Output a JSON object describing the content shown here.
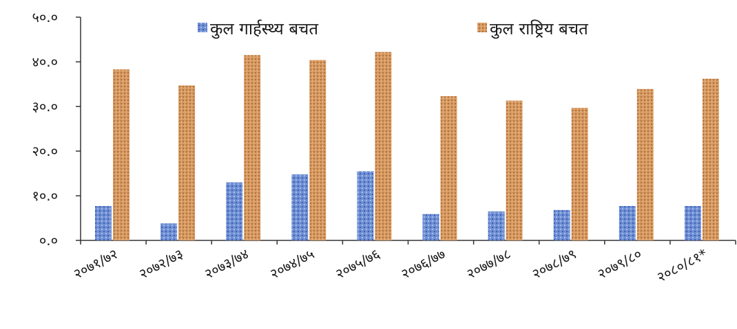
{
  "chart_data": {
    "type": "bar",
    "categories": [
      "२०७१/७२",
      "२०७२/७३",
      "२०७३/७४",
      "२०७४/७५",
      "२०७५/७६",
      "२०७६/७७",
      "२०७७/७८",
      "२०७८/७९",
      "२०७९/८०",
      "२०८०/८१*"
    ],
    "series": [
      {
        "name": "कुल गार्हस्थ्य बचत",
        "values": [
          7.7,
          3.8,
          13.0,
          14.8,
          15.5,
          5.9,
          6.5,
          6.8,
          7.7,
          7.7
        ],
        "color": "#6f8fd4"
      },
      {
        "name": "कुल राष्ट्रिय बचत",
        "values": [
          38.3,
          34.7,
          41.5,
          40.4,
          42.2,
          32.3,
          31.3,
          29.7,
          33.9,
          36.2
        ],
        "color": "#d79a62"
      }
    ],
    "yticks": [
      "०.०",
      "१०.०",
      "२०.०",
      "३०.०",
      "४०.०",
      "५०.०"
    ],
    "ylim": [
      0,
      50
    ],
    "grid": false,
    "legend_position": "top"
  }
}
